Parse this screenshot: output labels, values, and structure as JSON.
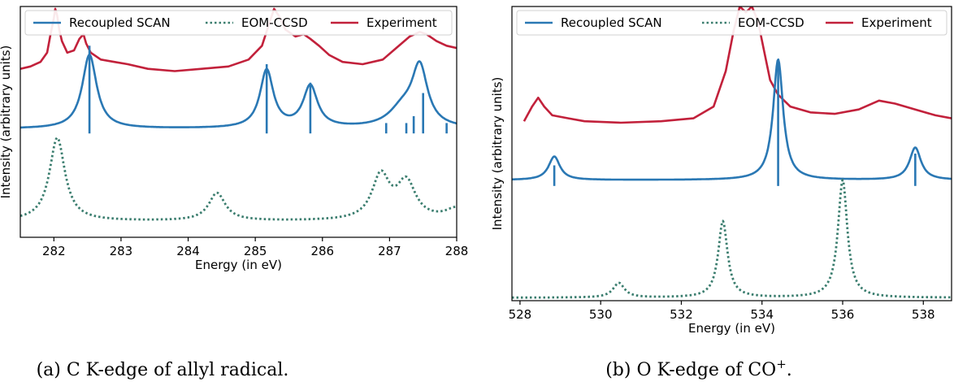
{
  "colors": {
    "scan": "#2a78b4",
    "eom": "#3a7d6e",
    "experiment": "#c2213b",
    "axis": "#000000"
  },
  "legend_labels": {
    "scan": "Recoupled SCAN",
    "eom": "EOM-CCSD",
    "experiment": "Experiment"
  },
  "chart_data": [
    {
      "type": "line",
      "caption": "(a) C K-edge of allyl radical.",
      "xlabel": "Energy (in eV)",
      "ylabel": "Intensity (arbitrary units)",
      "xlim": [
        281.5,
        288.0
      ],
      "ylim": [
        0,
        1
      ],
      "xticks": [
        282,
        283,
        284,
        285,
        286,
        287,
        288
      ],
      "legend_position": "top",
      "grid": false,
      "series": [
        {
          "name": "Experiment",
          "style": "solid",
          "x": [
            281.5,
            281.65,
            281.8,
            281.9,
            281.95,
            282.0,
            282.02,
            282.05,
            282.08,
            282.12,
            282.2,
            282.3,
            282.38,
            282.44,
            282.48,
            282.55,
            282.7,
            282.9,
            283.1,
            283.4,
            283.8,
            284.2,
            284.6,
            284.9,
            285.1,
            285.2,
            285.28,
            285.35,
            285.45,
            285.6,
            285.72,
            285.82,
            285.95,
            286.1,
            286.3,
            286.6,
            286.9,
            287.1,
            287.3,
            287.45,
            287.55,
            287.7,
            287.85,
            288.0
          ],
          "y": [
            0.73,
            0.74,
            0.76,
            0.8,
            0.88,
            0.95,
            0.99,
            0.96,
            0.9,
            0.85,
            0.8,
            0.81,
            0.86,
            0.88,
            0.84,
            0.8,
            0.77,
            0.76,
            0.75,
            0.73,
            0.72,
            0.73,
            0.74,
            0.77,
            0.83,
            0.92,
            0.99,
            0.96,
            0.9,
            0.87,
            0.88,
            0.86,
            0.83,
            0.79,
            0.76,
            0.75,
            0.77,
            0.82,
            0.87,
            0.89,
            0.88,
            0.85,
            0.83,
            0.82
          ]
        },
        {
          "name": "Recoupled SCAN",
          "style": "solid",
          "peaks": [
            {
              "center": 282.53,
              "height": 0.32,
              "width": 0.13
            },
            {
              "center": 285.17,
              "height": 0.25,
              "width": 0.12
            },
            {
              "center": 285.82,
              "height": 0.18,
              "width": 0.13
            },
            {
              "center": 287.2,
              "height": 0.08,
              "width": 0.25
            },
            {
              "center": 287.45,
              "height": 0.25,
              "width": 0.14
            }
          ],
          "baseline": 0.47,
          "sticks": [
            {
              "x": 282.53,
              "h": 0.38
            },
            {
              "x": 285.17,
              "h": 0.3
            },
            {
              "x": 285.82,
              "h": 0.22
            },
            {
              "x": 286.95,
              "h": 0.045
            },
            {
              "x": 287.25,
              "h": 0.045
            },
            {
              "x": 287.36,
              "h": 0.075
            },
            {
              "x": 287.5,
              "h": 0.175
            },
            {
              "x": 287.85,
              "h": 0.045
            }
          ]
        },
        {
          "name": "EOM-CCSD",
          "style": "dotted",
          "peaks": [
            {
              "center": 282.05,
              "height": 0.36,
              "width": 0.14
            },
            {
              "center": 284.43,
              "height": 0.12,
              "width": 0.15
            },
            {
              "center": 286.87,
              "height": 0.19,
              "width": 0.16
            },
            {
              "center": 287.25,
              "height": 0.16,
              "width": 0.17
            },
            {
              "center": 288.0,
              "height": 0.05,
              "width": 0.2
            }
          ],
          "baseline": 0.07
        }
      ]
    },
    {
      "type": "line",
      "caption": "(b) O K-edge of CO",
      "caption_superscript": "+",
      "caption_suffix": ".",
      "xlabel": "Energy (in eV)",
      "ylabel": "Intensity (arbitrary units)",
      "xlim": [
        527.8,
        538.7
      ],
      "ylim": [
        0,
        1
      ],
      "xticks": [
        528,
        530,
        532,
        534,
        536,
        538
      ],
      "legend_position": "top",
      "grid": false,
      "series": [
        {
          "name": "Experiment",
          "style": "solid",
          "x": [
            528.1,
            528.3,
            528.45,
            528.6,
            528.8,
            529.2,
            529.6,
            530.5,
            531.5,
            532.3,
            532.8,
            533.1,
            533.3,
            533.45,
            533.6,
            533.75,
            533.9,
            534.05,
            534.2,
            534.4,
            534.7,
            535.2,
            535.8,
            536.4,
            536.9,
            537.3,
            537.8,
            538.3,
            538.7
          ],
          "y": [
            0.61,
            0.66,
            0.69,
            0.66,
            0.63,
            0.62,
            0.61,
            0.605,
            0.61,
            0.62,
            0.66,
            0.78,
            0.92,
            1.0,
            0.98,
            1.0,
            0.95,
            0.85,
            0.75,
            0.7,
            0.66,
            0.64,
            0.635,
            0.65,
            0.68,
            0.67,
            0.65,
            0.63,
            0.62
          ]
        },
        {
          "name": "Recoupled SCAN",
          "style": "solid",
          "peaks": [
            {
              "center": 528.85,
              "height": 0.08,
              "width": 0.17
            },
            {
              "center": 534.4,
              "height": 0.41,
              "width": 0.15
            },
            {
              "center": 537.8,
              "height": 0.11,
              "width": 0.17
            }
          ],
          "baseline": 0.41,
          "sticks": [
            {
              "x": 528.85,
              "h": 0.07
            },
            {
              "x": 534.4,
              "h": 0.43
            },
            {
              "x": 537.8,
              "h": 0.11
            }
          ]
        },
        {
          "name": "EOM-CCSD",
          "style": "dotted",
          "peaks": [
            {
              "center": 530.45,
              "height": 0.05,
              "width": 0.17
            },
            {
              "center": 533.03,
              "height": 0.26,
              "width": 0.14
            },
            {
              "center": 536.0,
              "height": 0.4,
              "width": 0.14
            }
          ],
          "baseline": 0.01
        }
      ]
    }
  ]
}
